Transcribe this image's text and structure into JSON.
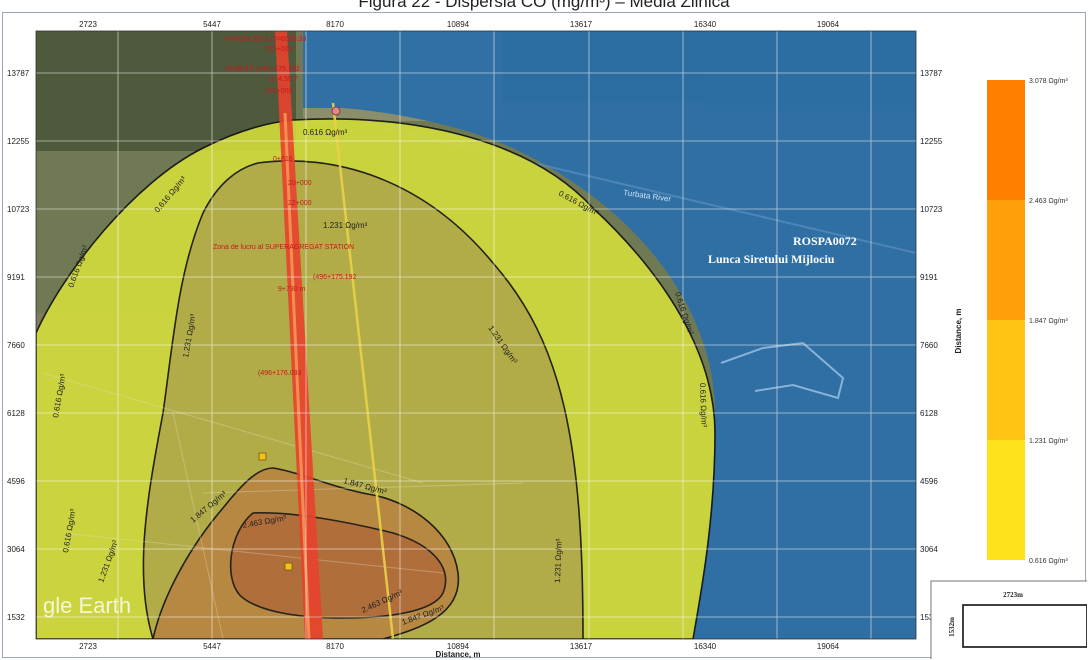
{
  "title": "Figura 22 - Dispersia CO (mg/m³) – Media Zilnică",
  "axes": {
    "x_ticks": [
      "2723",
      "5447",
      "8170",
      "10894",
      "13617",
      "16340",
      "19064"
    ],
    "y_ticks": [
      "13787",
      "12255",
      "10723",
      "9191",
      "7660",
      "6128",
      "4596",
      "3064",
      "1532"
    ],
    "x_label": "Distance, m",
    "y_label": "Distance, m"
  },
  "isolines": {
    "outer": "0.616 Ωg/m³",
    "middle": "1.231 Ωg/m³",
    "inner": "1.847 Ωg/m³",
    "core": "2.463 Ωg/m³"
  },
  "protected_area": {
    "code": "ROSPA0072",
    "name": "Lunca Siretului Mijlociu"
  },
  "river_label": "Turbata River",
  "watermark": "gle Earth",
  "road_labels": [
    "(0=6034.20) 1 (0=6050.33",
    "225+003",
    "+7.58 T  L (496+175.192",
    "(1+4.50 T",
    "220+000",
    "0+616",
    "20+000",
    "22+000",
    "Zona de lucru al SUPERAGREGAT STATION",
    "(496+175.192",
    "9+730 m",
    "(496+176.093"
  ],
  "legend": {
    "items": [
      {
        "label": "3.078 Ωg/m³",
        "color": "#ff7f00"
      },
      {
        "label": "2.463 Ωg/m³",
        "color": "#ff9f0a"
      },
      {
        "label": "1.847 Ωg/m³",
        "color": "#ffc414"
      },
      {
        "label": "1.231 Ωg/m³",
        "color": "#ffe31a"
      },
      {
        "label": "0.616 Ωg/m³",
        "color": "#ffff1e"
      }
    ]
  },
  "scale_box": {
    "x_label": "2723m",
    "y_label": "1532m"
  },
  "colors": {
    "water": "#2b6fa8",
    "outer_zone": "#d8e23a",
    "middle_zone": "#b0a94a",
    "inner_zone": "#b88440",
    "road": "#e83a2a"
  }
}
